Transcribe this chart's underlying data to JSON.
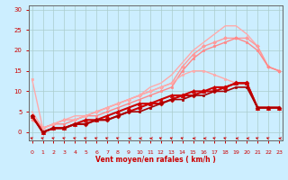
{
  "background_color": "#cceeff",
  "grid_color": "#aacccc",
  "xlabel": "Vent moyen/en rafales ( km/h )",
  "xlabel_color": "#cc0000",
  "tick_color": "#cc0000",
  "x_ticks": [
    0,
    1,
    2,
    3,
    4,
    5,
    6,
    7,
    8,
    9,
    10,
    11,
    12,
    13,
    14,
    15,
    16,
    17,
    18,
    19,
    20,
    21,
    22,
    23
  ],
  "y_ticks": [
    0,
    5,
    10,
    15,
    20,
    25,
    30
  ],
  "ylim": [
    -2,
    31
  ],
  "xlim": [
    -0.3,
    23.3
  ],
  "lines": [
    {
      "x": [
        0,
        1,
        2,
        3,
        4,
        5,
        6,
        7,
        8,
        9,
        10,
        11,
        12,
        13,
        14,
        15,
        16,
        17,
        18,
        19,
        20,
        21,
        22,
        23
      ],
      "y": [
        5,
        1,
        2,
        3,
        4,
        4,
        5,
        6,
        7,
        8,
        9,
        11,
        12,
        14,
        17,
        20,
        22,
        24,
        26,
        26,
        24,
        21,
        16,
        15
      ],
      "color": "#ffaaaa",
      "lw": 1.0,
      "marker": null,
      "ms": 0
    },
    {
      "x": [
        0,
        1,
        2,
        3,
        4,
        5,
        6,
        7,
        8,
        9,
        10,
        11,
        12,
        13,
        14,
        15,
        16,
        17,
        18,
        19,
        20,
        21,
        22,
        23
      ],
      "y": [
        4,
        1,
        2,
        3,
        3,
        4,
        5,
        6,
        7,
        8,
        9,
        10,
        11,
        12,
        16,
        19,
        21,
        22,
        23,
        23,
        23,
        21,
        16,
        15
      ],
      "color": "#ff9999",
      "lw": 1.0,
      "marker": "D",
      "ms": 2.0
    },
    {
      "x": [
        0,
        1,
        2,
        3,
        4,
        5,
        6,
        7,
        8,
        9,
        10,
        11,
        12,
        13,
        14,
        15,
        16,
        17,
        18,
        19,
        20,
        21,
        22,
        23
      ],
      "y": [
        3,
        1,
        2,
        2,
        3,
        4,
        4,
        5,
        6,
        7,
        8,
        9,
        10,
        11,
        15,
        18,
        20,
        21,
        22,
        23,
        22,
        20,
        16,
        15
      ],
      "color": "#ff8888",
      "lw": 1.0,
      "marker": "s",
      "ms": 2.0
    },
    {
      "x": [
        0,
        1,
        2,
        3,
        4,
        5,
        6,
        7,
        8,
        9,
        10,
        11,
        12,
        13,
        14,
        15,
        16,
        17,
        18,
        19
      ],
      "y": [
        13,
        1,
        2,
        3,
        3,
        4,
        5,
        6,
        7,
        8,
        9,
        10,
        11,
        12,
        14,
        15,
        15,
        14,
        13,
        12
      ],
      "color": "#ffaaaa",
      "lw": 1.0,
      "marker": "s",
      "ms": 2.0
    },
    {
      "x": [
        0,
        1,
        2,
        3,
        4,
        5,
        6,
        7,
        8,
        9,
        10,
        11,
        12,
        13,
        14,
        15,
        16,
        17,
        18,
        19,
        20,
        21,
        22,
        23
      ],
      "y": [
        4,
        0,
        1,
        1,
        2,
        2,
        3,
        3,
        4,
        5,
        6,
        7,
        7,
        8,
        9,
        9,
        10,
        10,
        11,
        12,
        12,
        6,
        6,
        6
      ],
      "color": "#cc0000",
      "lw": 1.5,
      "marker": "D",
      "ms": 2.5
    },
    {
      "x": [
        0,
        1,
        2,
        3,
        4,
        5,
        6,
        7,
        8,
        9,
        10,
        11,
        12,
        13,
        14,
        15,
        16,
        17,
        18,
        19,
        20,
        21,
        22,
        23
      ],
      "y": [
        4,
        0,
        1,
        1,
        2,
        3,
        3,
        4,
        5,
        6,
        7,
        7,
        8,
        9,
        9,
        10,
        10,
        11,
        11,
        12,
        12,
        6,
        6,
        6
      ],
      "color": "#cc0000",
      "lw": 1.5,
      "marker": "^",
      "ms": 3.0
    },
    {
      "x": [
        0,
        1,
        2,
        3,
        4,
        5,
        6,
        7,
        8,
        9,
        10,
        11,
        12,
        13,
        14,
        15,
        16,
        17,
        18,
        19,
        20,
        21,
        22,
        23
      ],
      "y": [
        4,
        0,
        1,
        1,
        2,
        2,
        3,
        3,
        4,
        5,
        5,
        6,
        7,
        8,
        8,
        9,
        9,
        10,
        10,
        11,
        11,
        6,
        6,
        6
      ],
      "color": "#aa0000",
      "lw": 1.2,
      "marker": "s",
      "ms": 2.0
    }
  ],
  "wind_symbols": {
    "x": [
      0,
      1,
      2,
      3,
      4,
      5,
      6,
      7,
      8,
      9,
      10,
      11,
      12,
      13,
      14,
      15,
      16,
      17,
      18,
      19,
      20,
      21,
      22,
      23
    ],
    "y": -1.5,
    "color": "#cc0000",
    "size": 4
  }
}
